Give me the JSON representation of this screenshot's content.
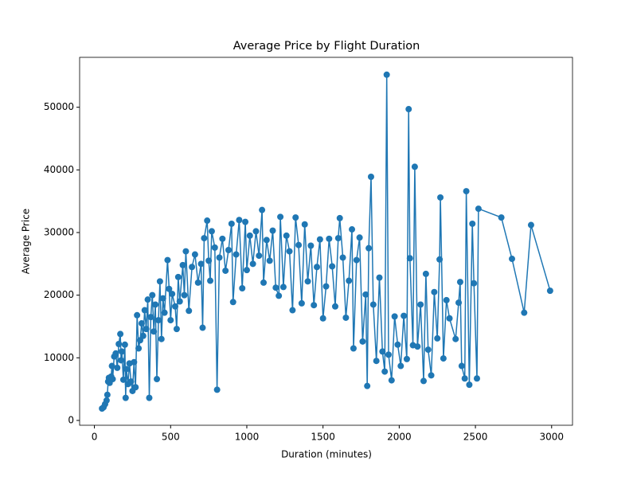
{
  "chart_data": {
    "type": "line",
    "title": "Average Price by Flight Duration",
    "x_label": "Duration (minutes)",
    "y_label": "Average Price",
    "x": [
      50,
      60,
      70,
      80,
      85,
      90,
      95,
      100,
      110,
      115,
      120,
      130,
      140,
      150,
      160,
      170,
      175,
      180,
      190,
      200,
      205,
      210,
      220,
      230,
      240,
      250,
      260,
      270,
      280,
      290,
      300,
      310,
      320,
      330,
      340,
      350,
      360,
      370,
      380,
      390,
      400,
      410,
      420,
      430,
      440,
      450,
      460,
      480,
      490,
      500,
      510,
      530,
      540,
      550,
      560,
      580,
      590,
      600,
      620,
      640,
      660,
      680,
      700,
      710,
      720,
      740,
      750,
      760,
      770,
      790,
      805,
      820,
      840,
      860,
      880,
      900,
      910,
      930,
      950,
      970,
      990,
      1000,
      1020,
      1040,
      1060,
      1080,
      1100,
      1110,
      1130,
      1150,
      1170,
      1190,
      1210,
      1220,
      1240,
      1260,
      1280,
      1300,
      1320,
      1340,
      1360,
      1380,
      1400,
      1420,
      1440,
      1460,
      1480,
      1500,
      1520,
      1540,
      1560,
      1580,
      1600,
      1610,
      1630,
      1650,
      1670,
      1690,
      1700,
      1720,
      1740,
      1760,
      1780,
      1790,
      1800,
      1815,
      1830,
      1850,
      1870,
      1890,
      1905,
      1918,
      1930,
      1950,
      1970,
      1990,
      2010,
      2030,
      2050,
      2062,
      2070,
      2090,
      2102,
      2120,
      2140,
      2160,
      2175,
      2190,
      2210,
      2230,
      2250,
      2265,
      2270,
      2290,
      2310,
      2330,
      2370,
      2390,
      2400,
      2410,
      2430,
      2440,
      2460,
      2480,
      2490,
      2510,
      2520,
      2670,
      2740,
      2820,
      2865,
      2990
    ],
    "series": [
      {
        "name": "Average Price",
        "color": "#1f77b4",
        "values": [
          1900,
          2100,
          2600,
          3200,
          4100,
          6200,
          6800,
          6000,
          7000,
          8700,
          6600,
          10200,
          10700,
          8400,
          12200,
          13800,
          9600,
          11000,
          6500,
          12100,
          3600,
          8200,
          5800,
          9100,
          6200,
          4700,
          9300,
          5300,
          16800,
          11500,
          12800,
          15500,
          13500,
          17600,
          14600,
          19300,
          3600,
          16500,
          20000,
          14200,
          18500,
          6600,
          16000,
          22200,
          13000,
          19500,
          17200,
          25600,
          21000,
          16000,
          20200,
          18200,
          14600,
          22900,
          19000,
          24800,
          20000,
          27000,
          17500,
          24500,
          26500,
          22000,
          25000,
          14800,
          29100,
          31900,
          25500,
          22300,
          30200,
          27600,
          4900,
          26000,
          29000,
          23900,
          27200,
          31400,
          18900,
          26500,
          32000,
          21100,
          31700,
          24000,
          29500,
          25000,
          30200,
          26300,
          33600,
          22000,
          28800,
          25500,
          30300,
          21200,
          19900,
          32500,
          21300,
          29500,
          27000,
          17600,
          32400,
          28000,
          18700,
          31300,
          22200,
          27900,
          18400,
          24500,
          28900,
          16300,
          21400,
          29000,
          24600,
          18200,
          29100,
          32300,
          26000,
          16400,
          22300,
          30500,
          11500,
          25600,
          29200,
          12600,
          20100,
          5500,
          27500,
          38900,
          18500,
          9500,
          22800,
          11000,
          7800,
          55200,
          10500,
          6400,
          16600,
          12100,
          8700,
          16700,
          9800,
          49700,
          25900,
          12000,
          40500,
          11800,
          18500,
          6300,
          23400,
          11300,
          7200,
          20500,
          13100,
          25700,
          35600,
          9900,
          19200,
          16300,
          13000,
          18800,
          22100,
          8700,
          6700,
          36600,
          5700,
          31400,
          21900,
          6700,
          33800,
          32400,
          25800,
          17200,
          31200,
          20700
        ]
      }
    ],
    "xlim": [
      -97,
      3137
    ],
    "ylim": [
      -770,
      57970
    ],
    "xticks": [
      0,
      500,
      1000,
      1500,
      2000,
      2500,
      3000
    ],
    "yticks": [
      0,
      10000,
      20000,
      30000,
      40000,
      50000
    ]
  }
}
